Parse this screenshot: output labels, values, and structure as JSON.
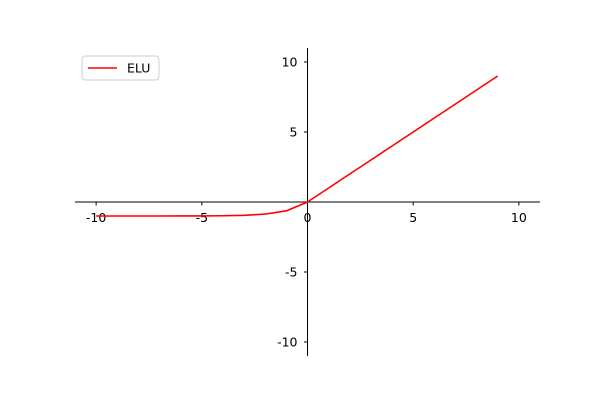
{
  "chart_data": {
    "type": "line",
    "legend": {
      "placement": "top-left"
    },
    "xlim": [
      -11,
      11
    ],
    "ylim": [
      -11,
      11
    ],
    "x_ticks": [
      -10,
      -5,
      0,
      5,
      10
    ],
    "y_ticks": [
      -10,
      -5,
      5,
      10
    ],
    "x_tick_labels": [
      "-10",
      "-5",
      "0",
      "5",
      "10"
    ],
    "y_tick_labels": [
      "-10",
      "-5",
      "5",
      "10"
    ],
    "grid": false,
    "axes_style": "centered spines through origin",
    "series": [
      {
        "name": "ELU",
        "color": "#ff0000",
        "x": [
          -10,
          -9,
          -8,
          -7,
          -6,
          -5,
          -4,
          -3,
          -2,
          -1,
          0,
          1,
          2,
          3,
          4,
          5,
          6,
          7,
          8,
          9
        ],
        "y": [
          -0.99995,
          -0.99988,
          -0.99966,
          -0.99909,
          -0.99752,
          -0.99326,
          -0.98168,
          -0.95021,
          -0.86466,
          -0.63212,
          0,
          1,
          2,
          3,
          4,
          5,
          6,
          7,
          8,
          9
        ]
      }
    ]
  }
}
